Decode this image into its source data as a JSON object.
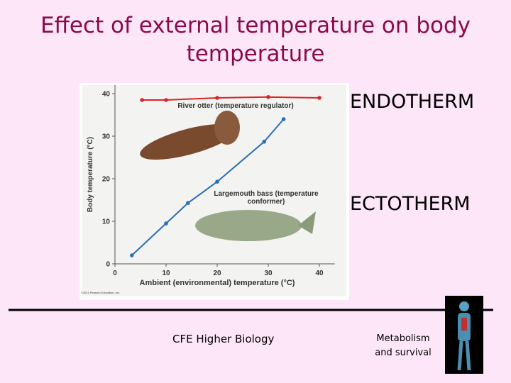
{
  "slide": {
    "title": "Effect of external temperature on body temperature",
    "labels": [
      "ENDOTHERM",
      "ECTOTHERM"
    ],
    "footer": {
      "left": "CFE Higher Biology",
      "right": "Metabolism and survival"
    }
  },
  "chart_data": {
    "type": "line",
    "x_label": "Ambient (environmental) temperature (°C)",
    "y_label": "Body temperature (°C)",
    "credit": "©2011 Pearson Education, Inc.",
    "xlim": [
      0,
      43
    ],
    "ylim": [
      0,
      42
    ],
    "xticks": [
      0,
      10,
      20,
      30,
      40
    ],
    "yticks": [
      0,
      10,
      20,
      30,
      40
    ],
    "series": [
      {
        "name": "River otter (temperature regulator)",
        "color": "#d9252a",
        "x": [
          5.3,
          10,
          20,
          30,
          40
        ],
        "values": [
          38.5,
          38.5,
          39,
          39.2,
          39
        ]
      },
      {
        "name": "Largemouth bass (temperature conformer)",
        "color": "#2a6fb6",
        "x": [
          3.3,
          10,
          14.3,
          20,
          29.2,
          33
        ],
        "values": [
          2,
          9.5,
          14.3,
          19.3,
          28.7,
          34
        ]
      }
    ]
  }
}
